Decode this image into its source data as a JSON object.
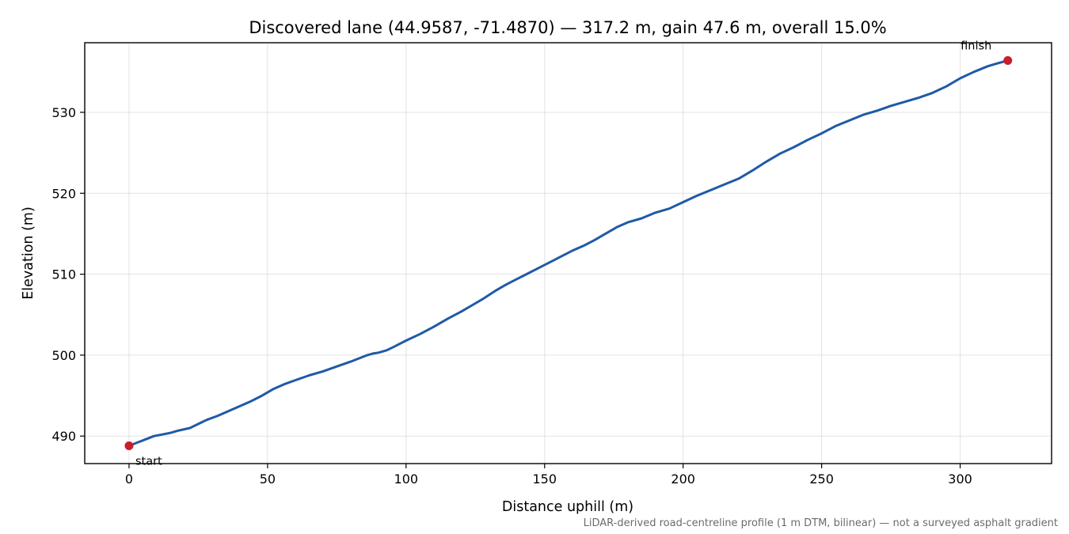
{
  "chart_data": {
    "type": "line",
    "title": "Discovered lane (44.9587, -71.4870) — 317.2 m, gain 47.6 m, overall 15.0%",
    "xlabel": "Distance uphill (m)",
    "ylabel": "Elevation (m)",
    "xlim": [
      -16,
      333
    ],
    "ylim": [
      486.6,
      538.6
    ],
    "xticks": [
      0,
      50,
      100,
      150,
      200,
      250,
      300
    ],
    "yticks": [
      490,
      500,
      510,
      520,
      530
    ],
    "grid": true,
    "line_color": "#1f5aa6",
    "marker_color": "#c81e2a",
    "series": [
      {
        "x": [
          0,
          3,
          6,
          9,
          12,
          15,
          18,
          22,
          25,
          28,
          32,
          36,
          40,
          44,
          48,
          52,
          56,
          60,
          65,
          70,
          75,
          80,
          83,
          86,
          88,
          90,
          93,
          96,
          100,
          105,
          110,
          115,
          120,
          124,
          128,
          132,
          136,
          140,
          144,
          148,
          152,
          156,
          160,
          164,
          168,
          172,
          176,
          180,
          185,
          190,
          195,
          200,
          205,
          210,
          215,
          220,
          225,
          230,
          235,
          240,
          245,
          250,
          255,
          260,
          265,
          270,
          275,
          280,
          285,
          290,
          295,
          300,
          305,
          310,
          313,
          317.2
        ],
        "y": [
          488.8,
          489.2,
          489.6,
          490.0,
          490.2,
          490.4,
          490.7,
          491.0,
          491.5,
          492.0,
          492.5,
          493.1,
          493.7,
          494.3,
          495.0,
          495.8,
          496.4,
          496.9,
          497.5,
          498.0,
          498.6,
          499.2,
          499.6,
          500.0,
          500.2,
          500.3,
          500.6,
          501.1,
          501.8,
          502.6,
          503.5,
          504.5,
          505.4,
          506.2,
          507.0,
          507.9,
          508.7,
          509.4,
          510.1,
          510.8,
          511.5,
          512.2,
          512.9,
          513.5,
          514.2,
          515.0,
          515.8,
          516.4,
          516.9,
          517.6,
          518.1,
          518.9,
          519.7,
          520.4,
          521.1,
          521.8,
          522.8,
          523.9,
          524.9,
          525.7,
          526.6,
          527.4,
          528.3,
          529.0,
          529.7,
          530.2,
          530.8,
          531.3,
          531.8,
          532.4,
          533.2,
          534.2,
          535.0,
          535.7,
          536.0,
          536.4
        ]
      }
    ],
    "annotations": [
      {
        "text": "start",
        "x": 0,
        "y": 488.8
      },
      {
        "text": "finish",
        "x": 317.2,
        "y": 536.4
      }
    ],
    "footnote": "LiDAR-derived road-centreline profile (1 m DTM, bilinear) — not a surveyed asphalt gradient"
  }
}
